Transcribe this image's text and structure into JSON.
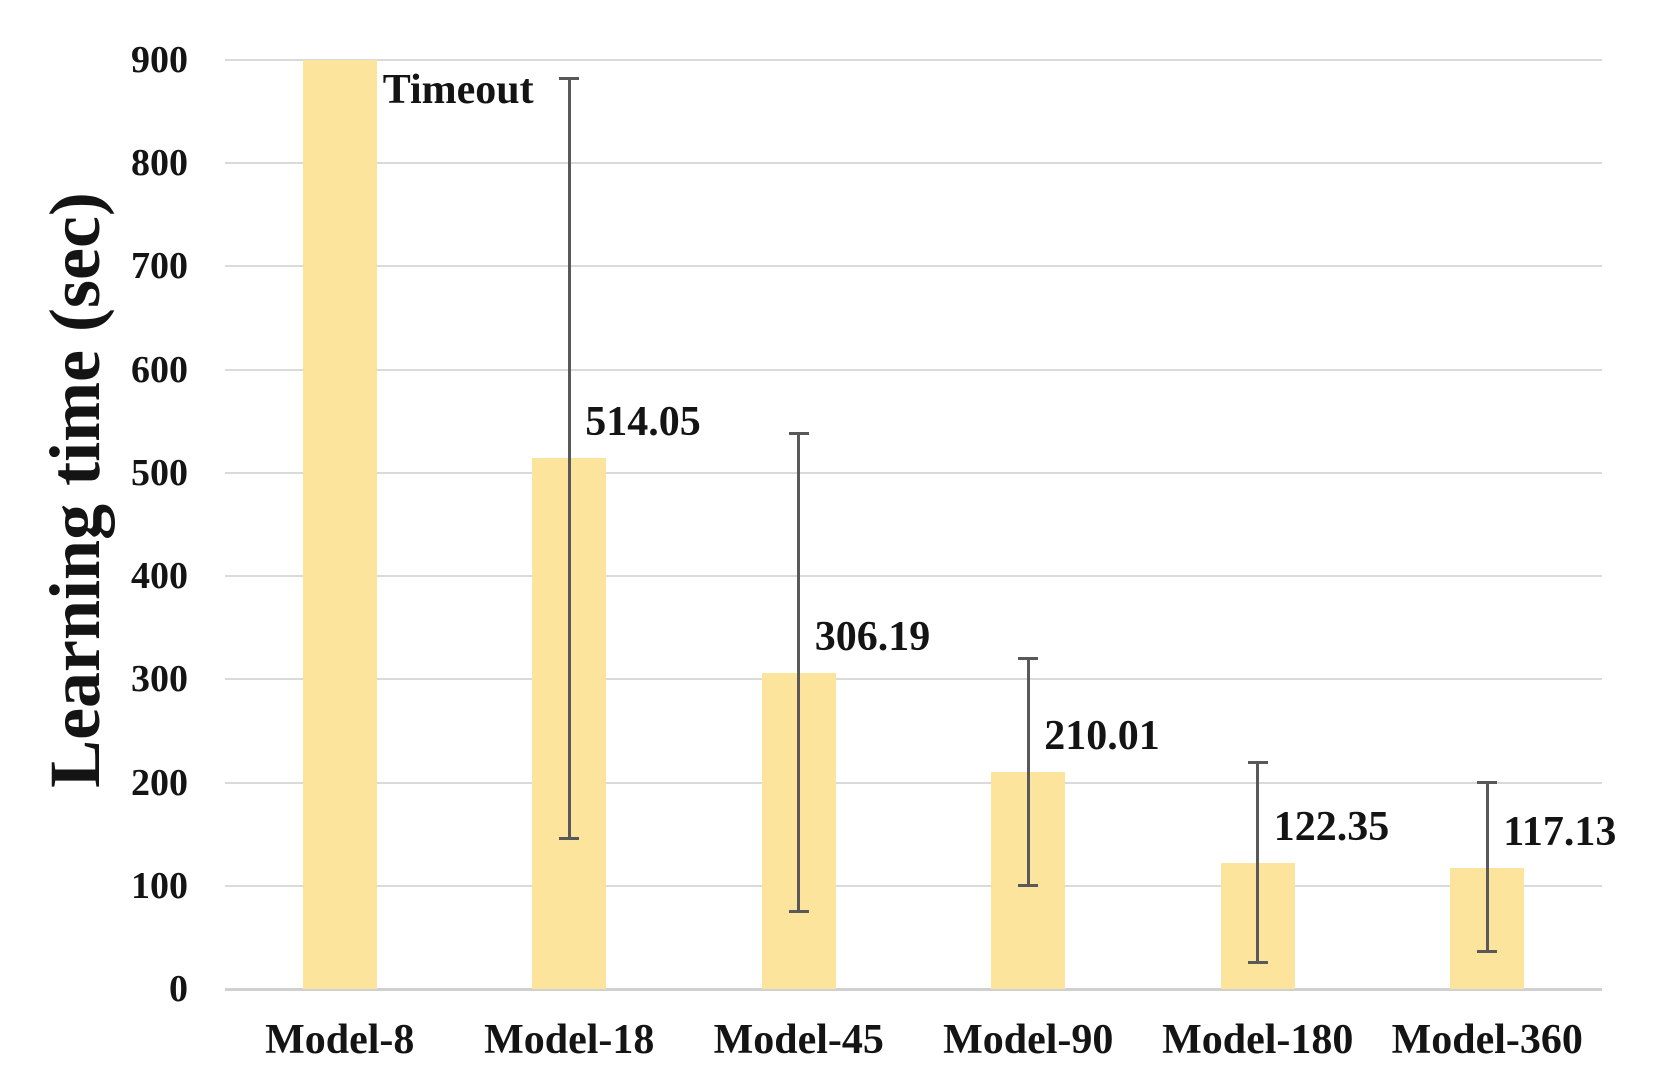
{
  "chart_data": {
    "type": "bar",
    "title": "",
    "xlabel": "",
    "ylabel": "Learning time (sec)",
    "ylim": [
      0,
      900
    ],
    "ytick_interval": 100,
    "ytick_labels": [
      "0",
      "100",
      "200",
      "300",
      "400",
      "500",
      "600",
      "700",
      "800",
      "900"
    ],
    "grid": "horizontal",
    "legend_position": "none",
    "categories": [
      "Model-8",
      "Model-18",
      "Model-45",
      "Model-90",
      "Model-180",
      "Model-360"
    ],
    "values": [
      900,
      514.05,
      306.19,
      210.01,
      122.35,
      117.13
    ],
    "bar_labels": [
      "Timeout",
      "514.05",
      "306.19",
      "210.01",
      "122.35",
      "117.13"
    ],
    "bar_clipped_at_max": [
      true,
      false,
      false,
      false,
      false,
      false
    ],
    "error_bars": [
      null,
      {
        "low": 146,
        "high": 882
      },
      {
        "low": 75,
        "high": 538
      },
      {
        "low": 100,
        "high": 320
      },
      {
        "low": 26,
        "high": 219
      },
      {
        "low": 36,
        "high": 200
      }
    ],
    "colors": {
      "bar_fill": "#FCE49D",
      "error_bar": "#595959",
      "gridline": "#DADADA",
      "axis_line": "#D0D0D0",
      "text": "#141414"
    }
  }
}
